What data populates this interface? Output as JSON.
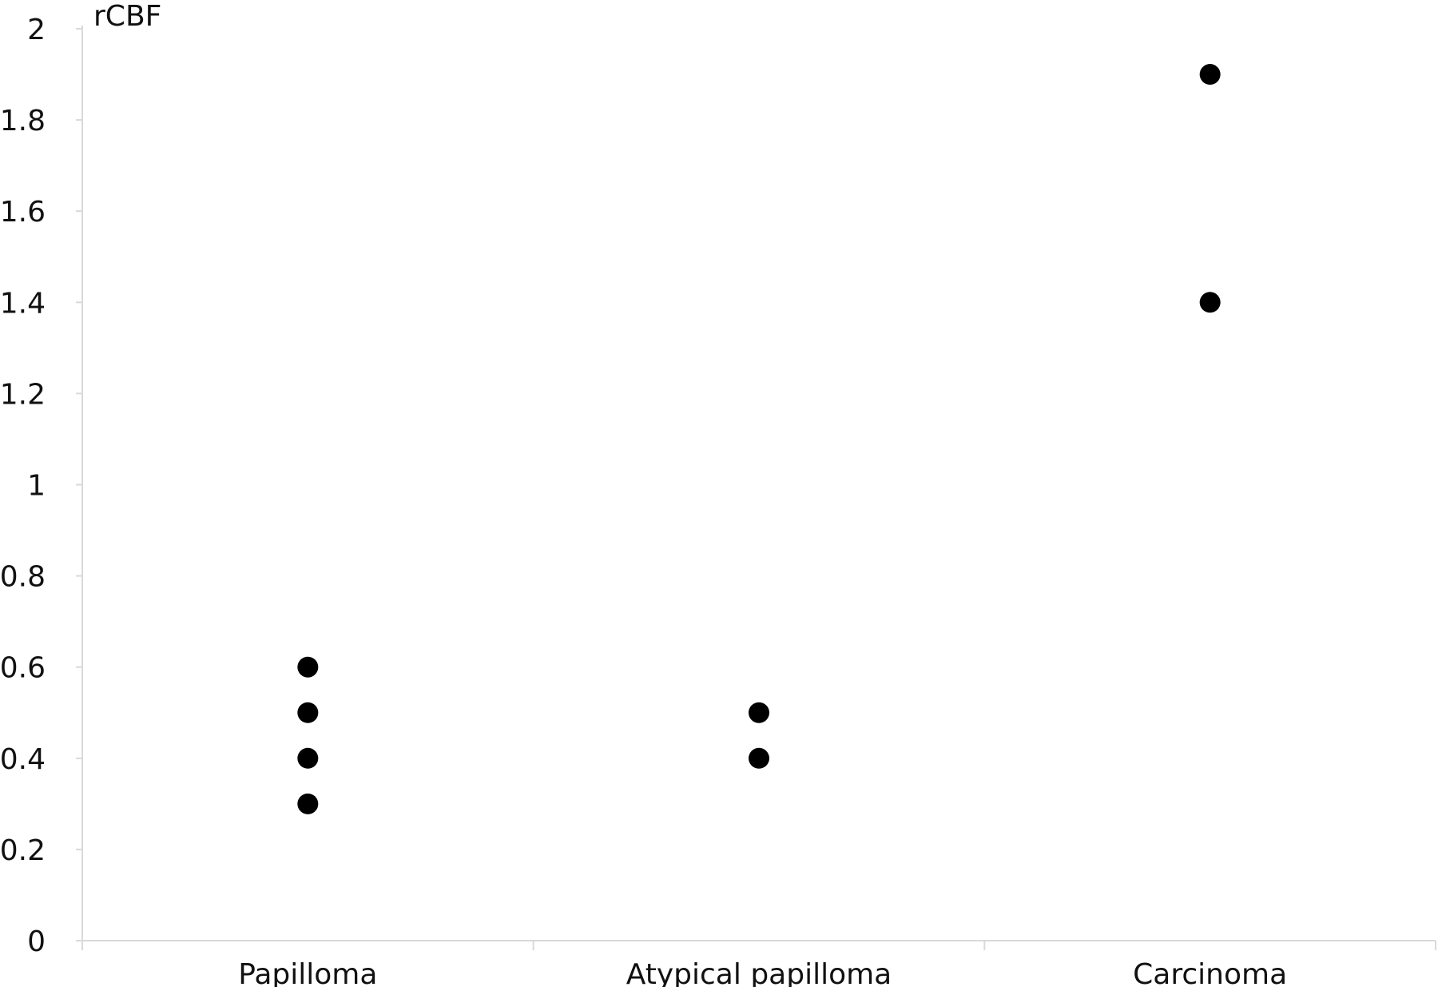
{
  "chart_data": {
    "type": "scatter",
    "title": "",
    "xlabel": "",
    "ylabel": "rCBF",
    "categories": [
      "Papilloma",
      "Atypical papilloma",
      "Carcinoma"
    ],
    "y_ticks": [
      "0",
      "0.2",
      "0.4",
      "0.6",
      "0.8",
      "1",
      "1.2",
      "1.4",
      "1.6",
      "1.8",
      "2"
    ],
    "ylim": [
      0,
      2
    ],
    "grid": false,
    "legend": "none",
    "point_color": "#000000",
    "axis_color": "#d9d9d9",
    "points": [
      {
        "category": "Papilloma",
        "y": 0.6
      },
      {
        "category": "Papilloma",
        "y": 0.5
      },
      {
        "category": "Papilloma",
        "y": 0.4
      },
      {
        "category": "Papilloma",
        "y": 0.3
      },
      {
        "category": "Atypical papilloma",
        "y": 0.5
      },
      {
        "category": "Atypical papilloma",
        "y": 0.4
      },
      {
        "category": "Carcinoma",
        "y": 1.9
      },
      {
        "category": "Carcinoma",
        "y": 1.4
      }
    ]
  }
}
